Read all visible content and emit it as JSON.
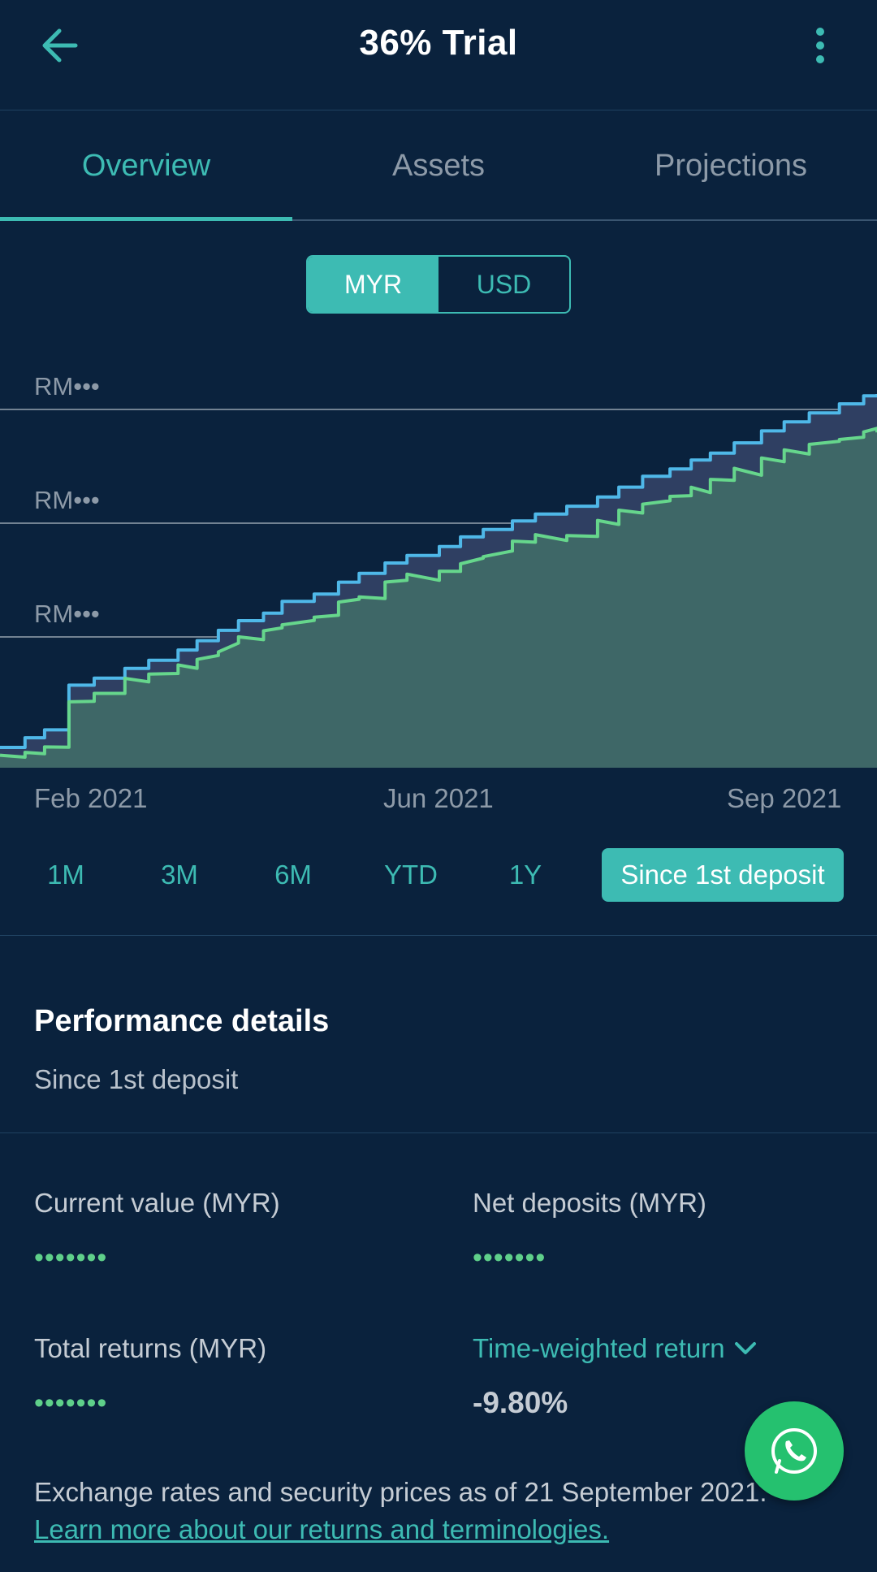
{
  "header": {
    "title": "36% Trial",
    "back_icon": "arrow-left-icon",
    "more_icon": "more-vertical-icon"
  },
  "tabs": [
    {
      "label": "Overview",
      "active": true
    },
    {
      "label": "Assets",
      "active": false
    },
    {
      "label": "Projections",
      "active": false
    }
  ],
  "currency_toggle": {
    "options": [
      "MYR",
      "USD"
    ],
    "selected": "MYR"
  },
  "chart": {
    "y_labels": [
      "RM•••",
      "RM•••",
      "RM•••"
    ],
    "x_labels": [
      "Feb 2021",
      "Jun 2021",
      "Sep 2021"
    ],
    "colors": {
      "deposits_line": "#4fb8e8",
      "value_line": "#66d68c",
      "value_fill": "#3e6767",
      "deposits_fill": "#2f3f62",
      "grid": "#8d9aa8"
    }
  },
  "ranges": [
    {
      "label": "1M",
      "active": false
    },
    {
      "label": "3M",
      "active": false
    },
    {
      "label": "6M",
      "active": false
    },
    {
      "label": "YTD",
      "active": false
    },
    {
      "label": "1Y",
      "active": false
    },
    {
      "label": "Since 1st deposit",
      "active": true
    }
  ],
  "performance": {
    "title": "Performance details",
    "subtitle": "Since 1st deposit",
    "current_value": {
      "label": "Current value (MYR)",
      "value": "•••••••"
    },
    "net_deposits": {
      "label": "Net deposits (MYR)",
      "value": "•••••••"
    },
    "total_returns": {
      "label": "Total returns (MYR)",
      "value": "•••••••"
    },
    "twr": {
      "label": "Time-weighted return",
      "value": "-9.80%",
      "icon": "chevron-down-icon"
    }
  },
  "footer": {
    "note": "Exchange rates and security prices as of 21 September 2021.",
    "link": "Learn more about our returns and terminologies."
  },
  "fab": {
    "icon": "whatsapp-icon"
  },
  "theme": {
    "background": "#0a223d",
    "accent": "#3dbbb3",
    "positive": "#5fd08a"
  }
}
